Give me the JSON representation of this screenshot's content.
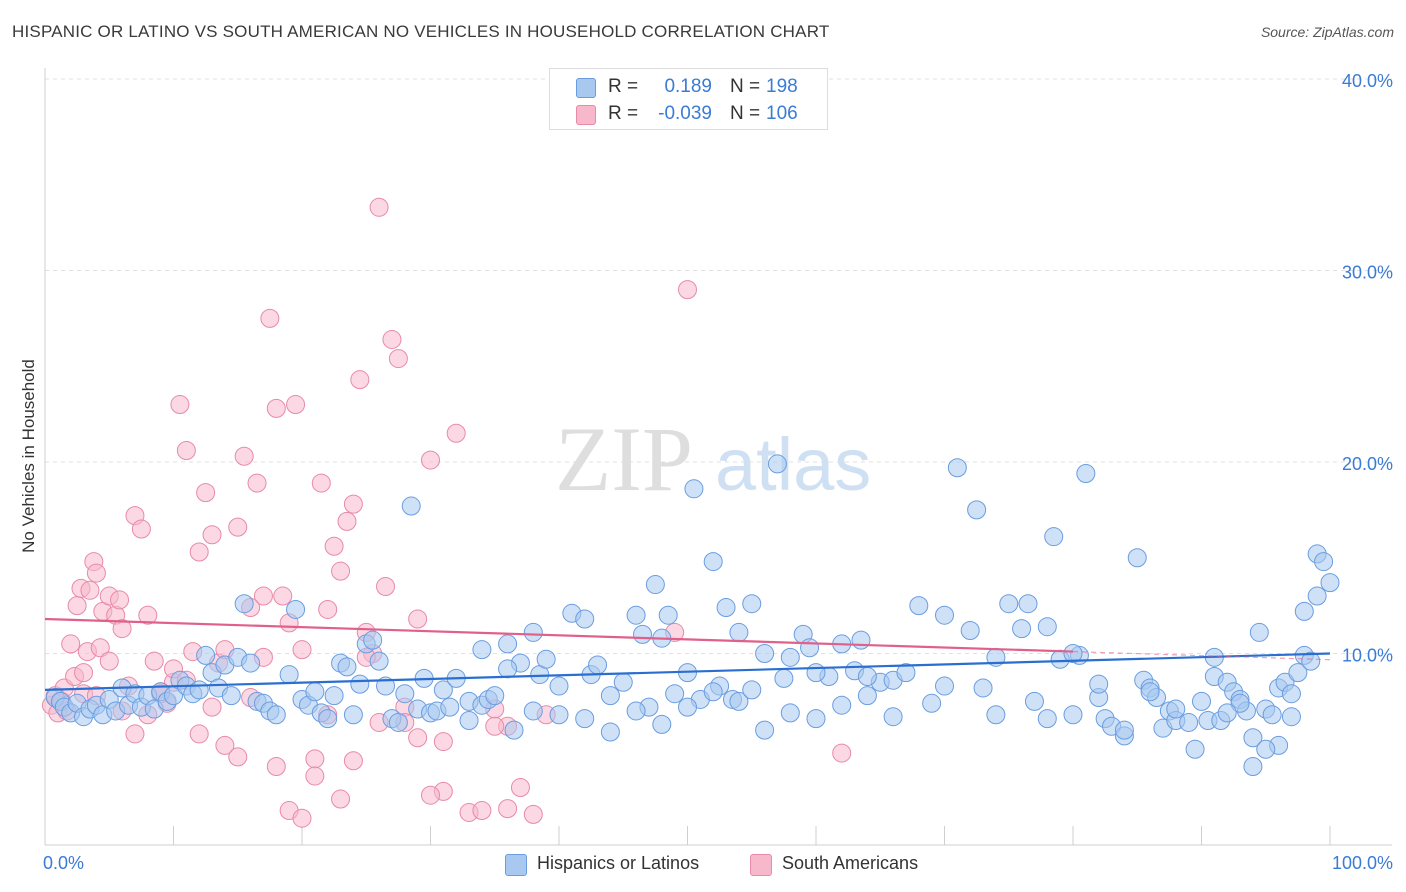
{
  "header": {
    "title": "HISPANIC OR LATINO VS SOUTH AMERICAN NO VEHICLES IN HOUSEHOLD CORRELATION CHART",
    "source": "Source: ZipAtlas.com"
  },
  "watermark": {
    "zip": "ZIP",
    "atlas": "atlas"
  },
  "legend_top": [
    {
      "r_label": "R =",
      "r_value": "0.189",
      "n_label": "N =",
      "n_value": "198"
    },
    {
      "r_label": "R =",
      "r_value": "-0.039",
      "n_label": "N =",
      "n_value": "106"
    }
  ],
  "legend_bottom": {
    "series1": "Hispanics or Latinos",
    "series2": "South Americans"
  },
  "colors": {
    "blue_fill": "#a8c8f0",
    "blue_stroke": "#6a9de0",
    "blue_line": "#2a6fd0",
    "pink_fill": "#f7b8cc",
    "pink_stroke": "#e88aa8",
    "pink_line": "#e0608a",
    "tick_label": "#3a7bd5",
    "grid": "#e0e0e0"
  },
  "chart_data": {
    "type": "scatter",
    "title": "HISPANIC OR LATINO VS SOUTH AMERICAN NO VEHICLES IN HOUSEHOLD CORRELATION CHART",
    "xlabel": "",
    "ylabel": "No Vehicles in Household",
    "xlim": [
      0,
      100
    ],
    "ylim": [
      0,
      40
    ],
    "x_tick_labels": [
      "0.0%",
      "100.0%"
    ],
    "y_ticks": [
      10,
      20,
      30,
      40
    ],
    "y_tick_labels": [
      "10.0%",
      "20.0%",
      "30.0%",
      "40.0%"
    ],
    "grid": true,
    "legend_placement": "top-center",
    "series": [
      {
        "name": "Hispanics or Latinos",
        "r": 0.189,
        "n": 198,
        "trend": [
          [
            0,
            8.1
          ],
          [
            100,
            10.0
          ]
        ],
        "points": [
          [
            0.8,
            7.7
          ],
          [
            1.2,
            7.5
          ],
          [
            1.5,
            7.2
          ],
          [
            2,
            6.9
          ],
          [
            2.5,
            7.4
          ],
          [
            3,
            6.7
          ],
          [
            3.5,
            7.1
          ],
          [
            4,
            7.3
          ],
          [
            4.5,
            6.8
          ],
          [
            5,
            7.6
          ],
          [
            5.5,
            7.0
          ],
          [
            6,
            8.2
          ],
          [
            6.5,
            7.3
          ],
          [
            7,
            7.9
          ],
          [
            7.5,
            7.2
          ],
          [
            8,
            7.8
          ],
          [
            8.5,
            7.1
          ],
          [
            9,
            8.0
          ],
          [
            9.5,
            7.5
          ],
          [
            10,
            7.8
          ],
          [
            10.5,
            8.6
          ],
          [
            11,
            8.3
          ],
          [
            11.5,
            7.9
          ],
          [
            12,
            8.1
          ],
          [
            12.5,
            9.9
          ],
          [
            13,
            9.0
          ],
          [
            13.5,
            8.2
          ],
          [
            14,
            9.4
          ],
          [
            14.5,
            7.8
          ],
          [
            15,
            9.8
          ],
          [
            15.5,
            12.6
          ],
          [
            16,
            9.5
          ],
          [
            16.5,
            7.5
          ],
          [
            17,
            7.4
          ],
          [
            17.5,
            7.0
          ],
          [
            18,
            6.8
          ],
          [
            19,
            8.9
          ],
          [
            19.5,
            12.3
          ],
          [
            20,
            7.6
          ],
          [
            20.5,
            7.3
          ],
          [
            21,
            8.0
          ],
          [
            21.5,
            6.9
          ],
          [
            22,
            6.6
          ],
          [
            22.5,
            7.8
          ],
          [
            23,
            9.5
          ],
          [
            23.5,
            9.3
          ],
          [
            24,
            6.8
          ],
          [
            24.5,
            8.4
          ],
          [
            25,
            10.5
          ],
          [
            25.5,
            10.7
          ],
          [
            26,
            9.6
          ],
          [
            26.5,
            8.3
          ],
          [
            27,
            6.6
          ],
          [
            27.5,
            6.4
          ],
          [
            28,
            7.9
          ],
          [
            28.5,
            17.7
          ],
          [
            29,
            7.1
          ],
          [
            29.5,
            8.7
          ],
          [
            30,
            6.9
          ],
          [
            30.5,
            7.0
          ],
          [
            31,
            8.1
          ],
          [
            31.5,
            7.2
          ],
          [
            32,
            8.7
          ],
          [
            33,
            7.5
          ],
          [
            34,
            7.3
          ],
          [
            34.5,
            7.6
          ],
          [
            35,
            7.8
          ],
          [
            36,
            10.5
          ],
          [
            36.5,
            6.0
          ],
          [
            37,
            9.5
          ],
          [
            38,
            11.1
          ],
          [
            38.5,
            8.9
          ],
          [
            39,
            9.7
          ],
          [
            40,
            8.3
          ],
          [
            41,
            12.1
          ],
          [
            42,
            11.8
          ],
          [
            42.5,
            8.9
          ],
          [
            43,
            9.4
          ],
          [
            44,
            7.8
          ],
          [
            45,
            8.5
          ],
          [
            46,
            12.0
          ],
          [
            46.5,
            11.0
          ],
          [
            47,
            7.2
          ],
          [
            47.5,
            13.6
          ],
          [
            48,
            10.8
          ],
          [
            48.5,
            12.0
          ],
          [
            49,
            7.9
          ],
          [
            50,
            9.0
          ],
          [
            50.5,
            18.6
          ],
          [
            51,
            7.6
          ],
          [
            52,
            14.8
          ],
          [
            52.5,
            8.3
          ],
          [
            53,
            12.4
          ],
          [
            53.5,
            7.6
          ],
          [
            54,
            7.5
          ],
          [
            55,
            12.6
          ],
          [
            56,
            6.0
          ],
          [
            57,
            19.9
          ],
          [
            57.5,
            8.7
          ],
          [
            58,
            9.8
          ],
          [
            59,
            11.0
          ],
          [
            59.5,
            10.3
          ],
          [
            60,
            6.6
          ],
          [
            61,
            8.8
          ],
          [
            62,
            10.5
          ],
          [
            63,
            9.1
          ],
          [
            63.5,
            10.7
          ],
          [
            64,
            7.8
          ],
          [
            65,
            8.5
          ],
          [
            66,
            8.6
          ],
          [
            67,
            9.0
          ],
          [
            68,
            12.5
          ],
          [
            69,
            7.4
          ],
          [
            70,
            12.0
          ],
          [
            71,
            19.7
          ],
          [
            72,
            11.2
          ],
          [
            72.5,
            17.5
          ],
          [
            73,
            8.2
          ],
          [
            74,
            6.8
          ],
          [
            75,
            12.6
          ],
          [
            76,
            11.3
          ],
          [
            76.5,
            12.6
          ],
          [
            77,
            7.5
          ],
          [
            78,
            11.4
          ],
          [
            78.5,
            16.1
          ],
          [
            79,
            9.7
          ],
          [
            80,
            6.8
          ],
          [
            80.5,
            9.9
          ],
          [
            81,
            19.4
          ],
          [
            82,
            7.7
          ],
          [
            82.5,
            6.6
          ],
          [
            83,
            6.2
          ],
          [
            84,
            5.7
          ],
          [
            85,
            15.0
          ],
          [
            85.5,
            8.6
          ],
          [
            86,
            8.2
          ],
          [
            86.5,
            7.7
          ],
          [
            87,
            6.1
          ],
          [
            87.5,
            7.0
          ],
          [
            88,
            6.5
          ],
          [
            89,
            6.4
          ],
          [
            89.5,
            5.0
          ],
          [
            90,
            7.5
          ],
          [
            90.5,
            6.5
          ],
          [
            91,
            8.8
          ],
          [
            91.5,
            6.5
          ],
          [
            92,
            8.5
          ],
          [
            92.5,
            8.0
          ],
          [
            93,
            7.6
          ],
          [
            93.5,
            7.0
          ],
          [
            94,
            5.6
          ],
          [
            94.5,
            11.1
          ],
          [
            95,
            7.1
          ],
          [
            95.5,
            6.8
          ],
          [
            96,
            8.2
          ],
          [
            96.5,
            8.5
          ],
          [
            97,
            7.9
          ],
          [
            97.5,
            9.0
          ],
          [
            98,
            9.9
          ],
          [
            98.5,
            9.6
          ],
          [
            99,
            15.2
          ],
          [
            99.5,
            14.8
          ],
          [
            100,
            13.7
          ],
          [
            99,
            13.0
          ],
          [
            98,
            12.2
          ],
          [
            97,
            6.7
          ],
          [
            96,
            5.2
          ],
          [
            95,
            5.0
          ],
          [
            94,
            4.1
          ],
          [
            93,
            7.4
          ],
          [
            92,
            6.9
          ],
          [
            91,
            9.8
          ],
          [
            88,
            7.1
          ],
          [
            86,
            8.0
          ],
          [
            84,
            6.0
          ],
          [
            82,
            8.4
          ],
          [
            80,
            10.0
          ],
          [
            78,
            6.6
          ],
          [
            74,
            9.8
          ],
          [
            70,
            8.3
          ],
          [
            66,
            6.7
          ],
          [
            64,
            8.8
          ],
          [
            62,
            7.3
          ],
          [
            60,
            9.0
          ],
          [
            58,
            6.9
          ],
          [
            56,
            10.0
          ],
          [
            55,
            8.1
          ],
          [
            54,
            11.1
          ],
          [
            52,
            8.0
          ],
          [
            50,
            7.2
          ],
          [
            48,
            6.3
          ],
          [
            46,
            7.0
          ],
          [
            44,
            5.9
          ],
          [
            42,
            6.6
          ],
          [
            40,
            6.8
          ],
          [
            38,
            7.0
          ],
          [
            36,
            9.2
          ],
          [
            34,
            10.2
          ],
          [
            33,
            6.5
          ]
        ]
      },
      {
        "name": "South Americans",
        "r": -0.039,
        "n": 106,
        "trend": [
          [
            0,
            11.8
          ],
          [
            80,
            10.1
          ]
        ],
        "points": [
          [
            0.5,
            7.3
          ],
          [
            0.8,
            7.8
          ],
          [
            1,
            6.9
          ],
          [
            1.3,
            7.5
          ],
          [
            1.5,
            8.2
          ],
          [
            1.7,
            7.0
          ],
          [
            2,
            10.5
          ],
          [
            2.3,
            8.8
          ],
          [
            2.5,
            12.5
          ],
          [
            2.8,
            13.4
          ],
          [
            3,
            7.9
          ],
          [
            3.3,
            10.1
          ],
          [
            3.5,
            13.3
          ],
          [
            3.8,
            14.8
          ],
          [
            4,
            14.2
          ],
          [
            4.3,
            10.3
          ],
          [
            4.5,
            12.2
          ],
          [
            5,
            13.0
          ],
          [
            5.5,
            12.0
          ],
          [
            5.8,
            12.8
          ],
          [
            6,
            11.3
          ],
          [
            6.5,
            8.3
          ],
          [
            7,
            17.2
          ],
          [
            7.5,
            16.5
          ],
          [
            8,
            12.0
          ],
          [
            8.5,
            9.6
          ],
          [
            9,
            8.0
          ],
          [
            9.5,
            7.4
          ],
          [
            10,
            8.5
          ],
          [
            10.5,
            23.0
          ],
          [
            11,
            20.6
          ],
          [
            11.5,
            10.1
          ],
          [
            12,
            15.3
          ],
          [
            12.5,
            18.4
          ],
          [
            13,
            16.2
          ],
          [
            13.5,
            9.5
          ],
          [
            14,
            10.2
          ],
          [
            15,
            16.6
          ],
          [
            15.5,
            20.3
          ],
          [
            16,
            7.7
          ],
          [
            16.5,
            18.9
          ],
          [
            17,
            13.0
          ],
          [
            17.5,
            27.5
          ],
          [
            18,
            22.8
          ],
          [
            18.5,
            13.0
          ],
          [
            19,
            11.6
          ],
          [
            19.5,
            23.0
          ],
          [
            20,
            10.2
          ],
          [
            21,
            4.5
          ],
          [
            21.5,
            18.9
          ],
          [
            22,
            12.3
          ],
          [
            22.5,
            15.6
          ],
          [
            23,
            14.3
          ],
          [
            23.5,
            16.9
          ],
          [
            24,
            17.8
          ],
          [
            24.5,
            24.3
          ],
          [
            25,
            11.1
          ],
          [
            25.5,
            10.0
          ],
          [
            26,
            33.3
          ],
          [
            26.5,
            13.5
          ],
          [
            27,
            26.4
          ],
          [
            27.5,
            25.4
          ],
          [
            28,
            7.2
          ],
          [
            29,
            11.8
          ],
          [
            30,
            20.1
          ],
          [
            31,
            2.8
          ],
          [
            32,
            21.5
          ],
          [
            33,
            1.7
          ],
          [
            34,
            1.8
          ],
          [
            35,
            7.1
          ],
          [
            36,
            6.2
          ],
          [
            37,
            3.0
          ],
          [
            38,
            1.6
          ],
          [
            39,
            6.8
          ],
          [
            50,
            29.0
          ],
          [
            49,
            11.1
          ],
          [
            62,
            4.8
          ],
          [
            3,
            9.0
          ],
          [
            4,
            7.8
          ],
          [
            5,
            9.6
          ],
          [
            6,
            7.0
          ],
          [
            7,
            5.8
          ],
          [
            8,
            6.8
          ],
          [
            9,
            7.9
          ],
          [
            10,
            9.2
          ],
          [
            11,
            8.6
          ],
          [
            12,
            5.8
          ],
          [
            13,
            7.2
          ],
          [
            14,
            5.2
          ],
          [
            15,
            4.6
          ],
          [
            16,
            12.4
          ],
          [
            17,
            9.8
          ],
          [
            18,
            4.1
          ],
          [
            19,
            1.8
          ],
          [
            20,
            1.4
          ],
          [
            21,
            3.6
          ],
          [
            22,
            6.8
          ],
          [
            23,
            2.4
          ],
          [
            24,
            4.4
          ],
          [
            25,
            9.8
          ],
          [
            26,
            6.4
          ],
          [
            28,
            6.4
          ],
          [
            29,
            5.6
          ],
          [
            30,
            2.6
          ],
          [
            31,
            5.4
          ],
          [
            35,
            6.2
          ],
          [
            36,
            1.9
          ]
        ]
      }
    ]
  }
}
